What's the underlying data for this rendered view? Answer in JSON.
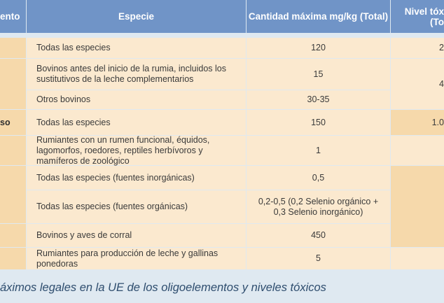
{
  "header": {
    "col_element": "ento",
    "col_species": "Especie",
    "col_max": "Cantidad máxima mg/kg (Total)",
    "col_toxic_line1": "Nivel tóx",
    "col_toxic_line2": "(To"
  },
  "rows": [
    {
      "element": "",
      "species": "Todas las especies",
      "max": "120",
      "toxic": "2"
    },
    {
      "element": "",
      "species": "Bovinos antes del inicio de la rumia, incluidos los sustitutivos de la leche complementarios",
      "max": "15",
      "toxic": "4"
    },
    {
      "element": "",
      "species": "Otros bovinos",
      "max": "30-35",
      "toxic": ""
    },
    {
      "element": "so",
      "species": "Todas las especies",
      "max": "150",
      "toxic": "1.0"
    },
    {
      "element": "",
      "species": "Rumiantes con un rumen funcional, équidos, lagomorfos, roedores, reptiles herbívoros y mamíferos de zoológico",
      "max": "1",
      "toxic": ""
    },
    {
      "element": "",
      "species": "Todas las especies (fuentes inorgánicas)",
      "max": "0,5",
      "toxic": ""
    },
    {
      "element": "",
      "species": "Todas las especies (fuentes orgánicas)",
      "max": "0,2-0,5 (0,2 Selenio orgánico + 0,3 Selenio inorgánico)",
      "toxic": ""
    },
    {
      "element": "",
      "species": "Bovinos y aves de corral",
      "max": "450",
      "toxic": ""
    },
    {
      "element": "",
      "species": "Rumiantes para producción de leche y gallinas ponedoras",
      "max": "5",
      "toxic": ""
    }
  ],
  "caption": "áximos legales en la UE de los oligoelementos y niveles tóxicos"
}
